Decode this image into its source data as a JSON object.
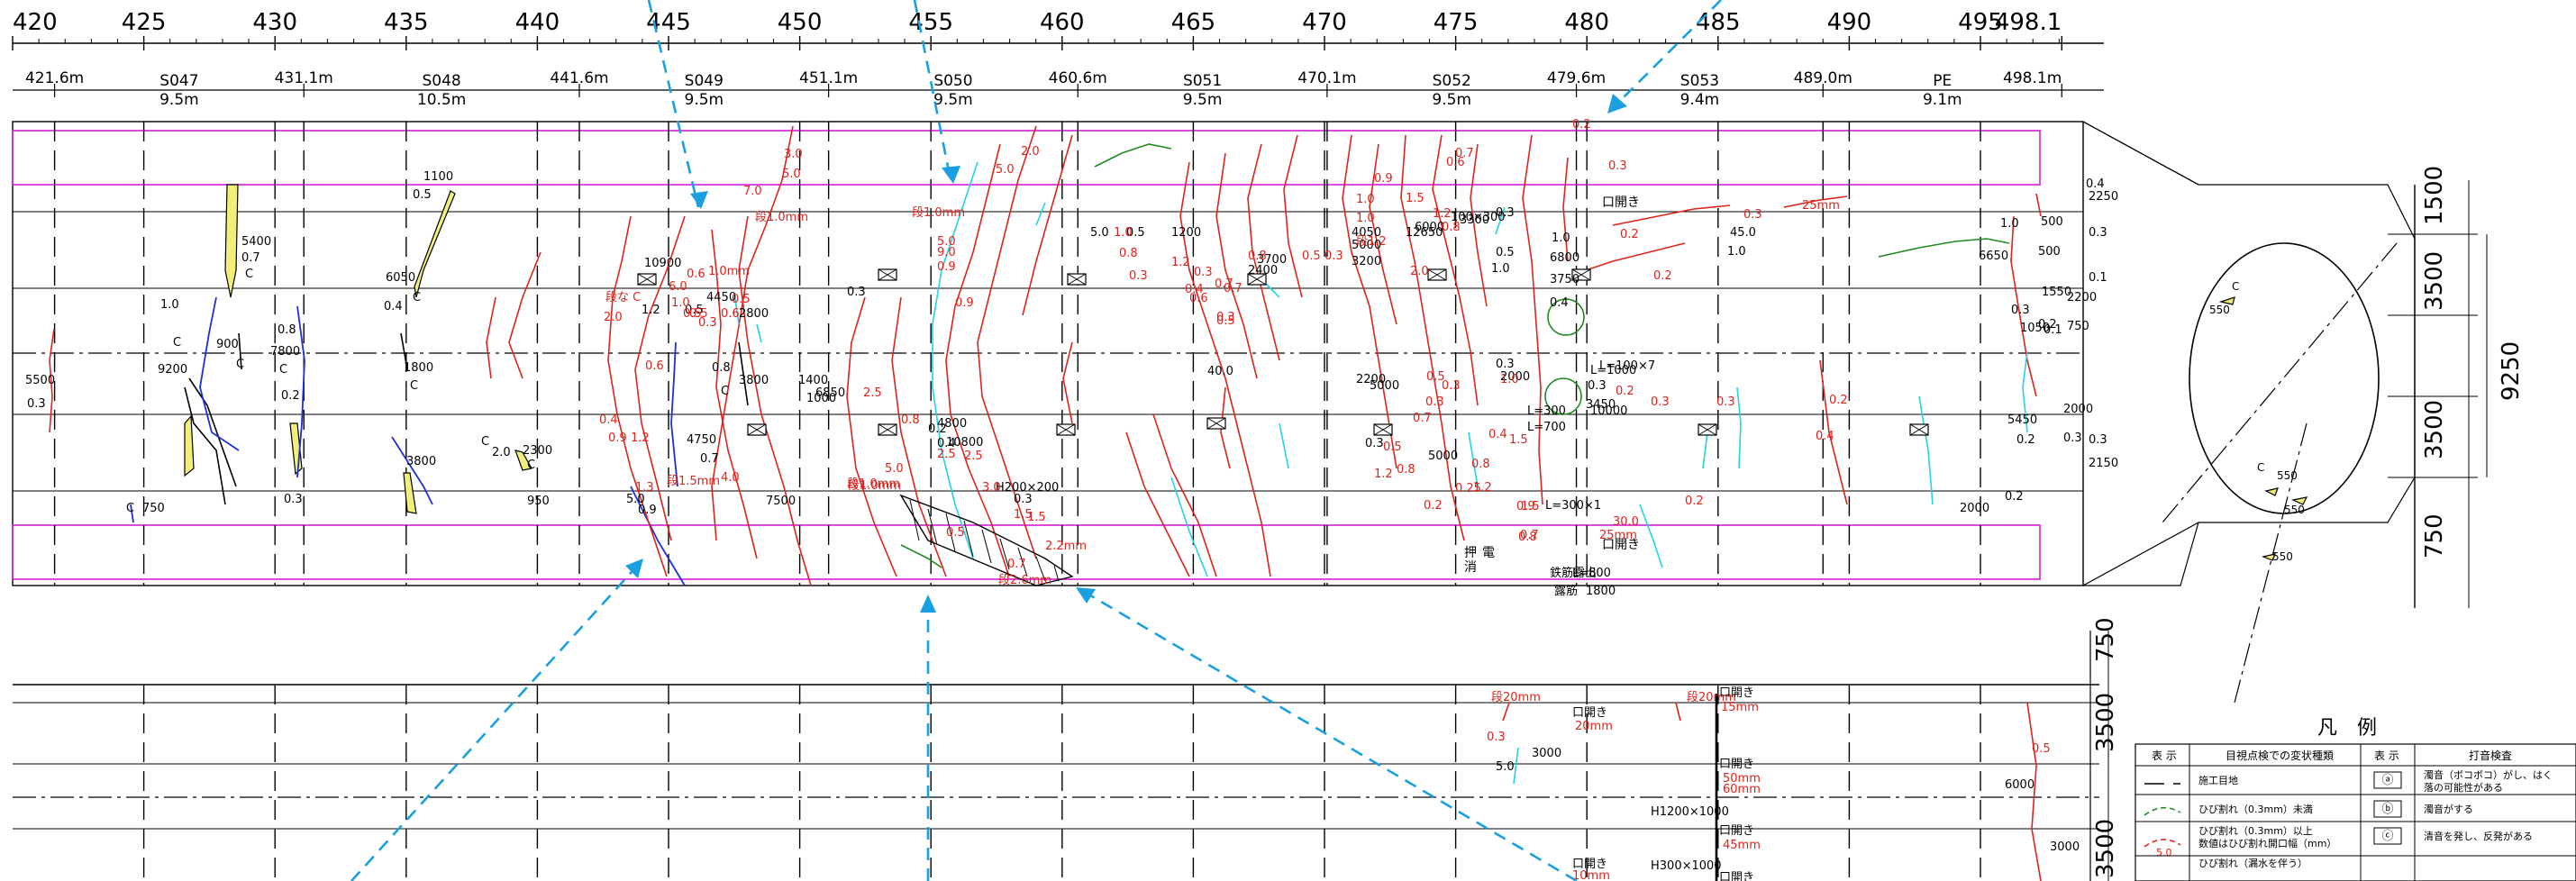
{
  "chainage_scale": {
    "ticks": [
      "420",
      "425",
      "430",
      "435",
      "440",
      "445",
      "450",
      "455",
      "460",
      "465",
      "470",
      "475",
      "480",
      "485",
      "490",
      "495",
      "498.1"
    ]
  },
  "segments": {
    "boundaries": [
      "421.6m",
      "431.1m",
      "441.6m",
      "451.1m",
      "460.6m",
      "470.1m",
      "479.6m",
      "489.0m",
      "498.1m"
    ],
    "names": [
      "S047",
      "S048",
      "S049",
      "S050",
      "S051",
      "S052",
      "S053",
      "PE"
    ],
    "lengths": [
      "9.5m",
      "10.5m",
      "9.5m",
      "9.5m",
      "9.5m",
      "9.5m",
      "9.4m",
      "9.1m"
    ]
  },
  "upper_plan": {
    "labels_black": [
      "1100",
      "0.5",
      "5400",
      "0.7",
      "C",
      "1.0",
      "C",
      "9200",
      "900",
      "C",
      "0.8",
      "7800",
      "C",
      "0.2",
      "0.3",
      "5500",
      "0.3",
      "C",
      "750",
      "6050",
      "0.4",
      "C",
      "1800",
      "C",
      "3800",
      "C",
      "2.0",
      "2300",
      "C",
      "950",
      "10900",
      "4450",
      "1.2",
      "0.5",
      "0.8",
      "C",
      "3800",
      "4750",
      "0.7",
      "2800",
      "1400",
      "1000",
      "0.3",
      "0.2",
      "4800",
      "0.4",
      "5.0",
      "0.9",
      "6850",
      "10800",
      "0.3",
      "H200×200",
      "7500",
      "5.0",
      "0.5",
      "1200",
      "2400",
      "3700",
      "40.0",
      "4050",
      "5000",
      "3200",
      "6000",
      "12650",
      "0.5",
      "1.0",
      "2200",
      "5000",
      "0.3",
      "5000",
      "100×300",
      "0.3",
      "3300",
      "6800",
      "1.0",
      "3750",
      "0.4",
      "0.3",
      "2000",
      "L=300",
      "L=700",
      "L=1000",
      "0.3",
      "3450",
      "10000",
      "L=100×7",
      "L=300×1",
      "鉄筋露出",
      "L=800",
      "露筋",
      "1800",
      "45.0",
      "1.0",
      "1.0",
      "500",
      "500",
      "6650",
      "0.3",
      "1050",
      "0.1",
      "0.2",
      "5450",
      "0.2",
      "2000",
      "0.3",
      "0.2",
      "2000",
      "2250",
      "0.3",
      "0.1",
      "0.3",
      "2150",
      "0.4",
      "1550",
      "2200",
      "750",
      "700",
      "550",
      "600",
      "0.2",
      "0.2",
      "0.2"
    ],
    "labels_red": [
      "3.0",
      "5.0",
      "7.0",
      "段1.0mm",
      "段1.0mm",
      "0.6",
      "1.0mm",
      "6.0",
      "1.0",
      "0.5",
      "0.3",
      "段な C",
      "2.0",
      "0.6",
      "0.4",
      "0.9",
      "1.2",
      "1.3",
      "段1.5mm",
      "4.0",
      "0.5",
      "0.6",
      "0.5",
      "5.0",
      "2.0",
      "2.5",
      "段1.0mm",
      "9.0",
      "5.0",
      "0.9",
      "0.9",
      "2.5",
      "0.8",
      "2.5",
      "5.0",
      "1.5",
      "段1.0mm",
      "3.0",
      "1.5",
      "2.2mm",
      "0.7",
      "段2.6mm",
      "0.5",
      "0.8",
      "1.0",
      "0.3",
      "1.2",
      "0.3",
      "0.4",
      "0.7",
      "0.8",
      "0.5",
      "0.3",
      "0.3",
      "0.7",
      "0.6",
      "0.5",
      "1.0",
      "1.5",
      "1.2",
      "0.8",
      "1.0",
      "段1.2",
      "0.6",
      "0.7",
      "0.9",
      "2.0",
      "0.3",
      "0.3",
      "0.25",
      "0.7",
      "0.5",
      "1.0",
      "1.5",
      "1.2",
      "0.8",
      "0.9",
      "0.8",
      "0.7",
      "1.5",
      "0.5",
      "1.2",
      "0.8",
      "0.2",
      "0.4",
      "0.2",
      "0.2",
      "0.2",
      "0.3",
      "0.3",
      "0.4",
      "0.2",
      "0.3",
      "25mm",
      "30.0",
      "0.2",
      "0.3",
      "25mm",
      "0.2"
    ],
    "notes": [
      "口開き",
      "口開き",
      "押",
      "電",
      "消"
    ],
    "markers": [
      "ⓐ",
      "ⓑ",
      "ⓒ"
    ]
  },
  "section_view": {
    "dims": [
      "1500",
      "3500",
      "3500",
      "9250",
      "750"
    ],
    "labels": [
      "C",
      "550",
      "C",
      "550",
      "550",
      "550",
      "C"
    ]
  },
  "lower_plan": {
    "dims_right": [
      "750",
      "3500",
      "3500"
    ],
    "labels": [
      "段20mm",
      "口開き",
      "20mm",
      "段20mm",
      "口開き",
      "15mm",
      "0.3",
      "3000",
      "5.0",
      "口開き",
      "50mm",
      "60mm",
      "H1200×1000",
      "口開き",
      "45mm",
      "口開き",
      "10mm",
      "H300×1000",
      "口開き",
      "0.5",
      "6000",
      "3000"
    ]
  },
  "legend": {
    "title": "凡　例",
    "col_headers": [
      "表 示",
      "目視点検での変状種類",
      "表 示",
      "打音検査"
    ],
    "rows": [
      {
        "visual": "施工目地",
        "symbol": "ⓐ",
        "hammer": "濁音（ボコボコ）がし、はく落の可能性がある"
      },
      {
        "visual": "ひび割れ（0.3mm）未満",
        "symbol": "ⓑ",
        "hammer": "濁音がする"
      },
      {
        "visual": "ひび割れ（0.3mm）以上 数値はひび割れ開口幅（mm）",
        "symbol": "ⓒ",
        "hammer": "清音を発し、反発がある"
      },
      {
        "visual": "ひび割れ（漏水を伴う）",
        "symbol": "",
        "hammer": ""
      }
    ],
    "sample_value": "5.0"
  },
  "colors": {
    "crack_red": "#e0221c",
    "crack_cyan": "#22d3e6",
    "crack_blue": "#1d2fd8",
    "crack_green": "#1f8a1f",
    "band_magenta": "#d81bd8",
    "arrow_blue": "#1aa0e0",
    "scaling_yellow": "#f2ee7a"
  }
}
